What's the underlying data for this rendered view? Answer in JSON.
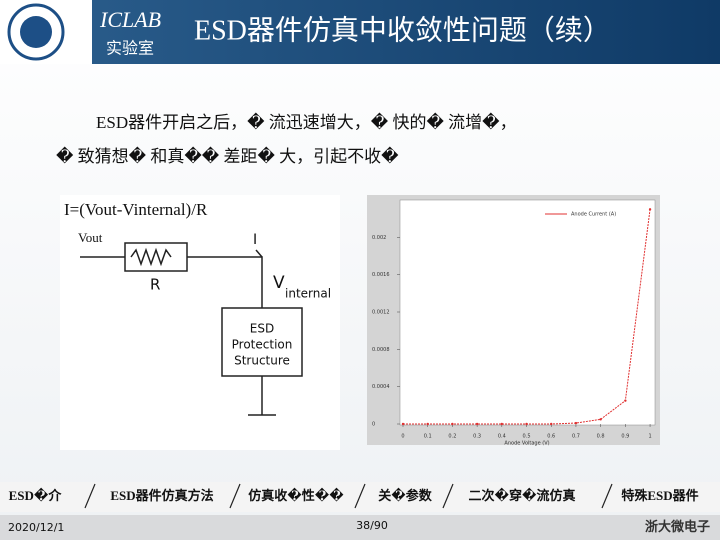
{
  "header": {
    "logo_text": "ICLAB",
    "logo_subtext": "实验室",
    "title": "ESD器件仿真中收敛性问题（续）"
  },
  "body": {
    "lines": [
      "ESD器件开启之后，� 流迅速增大，� 快的� 流增�，",
      "� 致猜想� 和真�� 差距� 大，引起不收�"
    ]
  },
  "diagram": {
    "formula": "I=(Vout-Vinternal)/R",
    "vout": "Vout",
    "current": "I",
    "resistor": "R",
    "vint": "V",
    "vint_sub": "internal",
    "block": [
      "ESD",
      "Protection",
      "Structure"
    ]
  },
  "chart_data": {
    "type": "line",
    "x_label": "Anode Voltage (V)",
    "x": [
      0,
      0.1,
      0.2,
      0.3,
      0.4,
      0.5,
      0.6,
      0.7,
      0.8,
      0.9,
      1
    ],
    "series": [
      {
        "name": "Anode Current (A)",
        "color": "#e03030",
        "values": [
          0,
          0,
          0,
          0,
          0,
          0,
          0,
          1e-05,
          5e-05,
          0.00025,
          0.0023
        ]
      }
    ],
    "xlim": [
      0,
      1.02
    ],
    "xticks": [
      0,
      0.1,
      0.2,
      0.3,
      0.4,
      0.5,
      0.6,
      0.7,
      0.8,
      0.9,
      1
    ],
    "ylim": [
      0,
      0.0024
    ],
    "yticks": [
      0,
      0.0004,
      0.0008,
      0.0012,
      0.0016,
      0.002
    ],
    "grid": false,
    "legend": "top-right"
  },
  "footer": {
    "tabs": [
      "ESD�介",
      "ESD器件仿真方法",
      "仿真收�性��",
      "关�参数",
      "二次�穿�流仿真",
      "特殊ESD器件"
    ],
    "date": "2020/12/1",
    "page": "38/90",
    "brand": "浙大微电子"
  }
}
